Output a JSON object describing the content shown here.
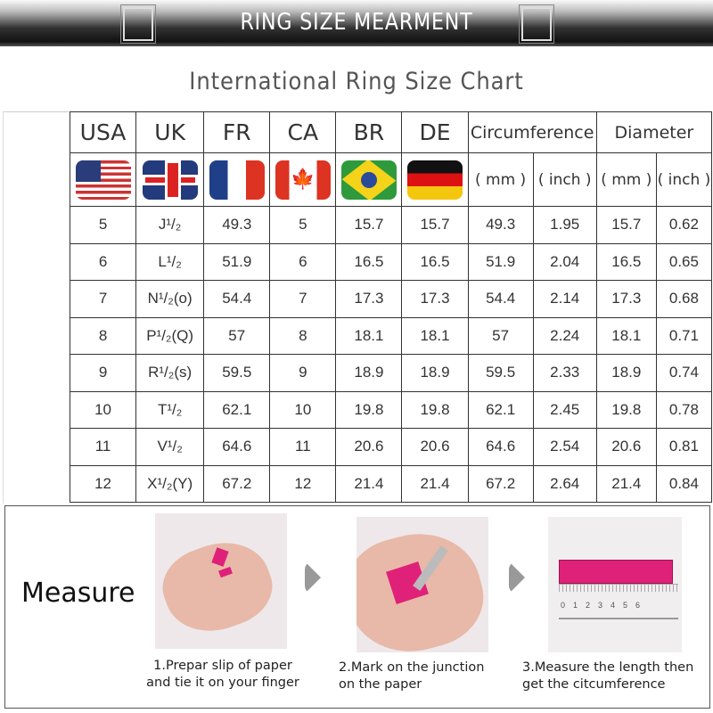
{
  "banner": {
    "title": "RING SIZE MEARMENT"
  },
  "title": "International Ring Size Chart",
  "table": {
    "headers": [
      "USA",
      "UK",
      "FR",
      "CA",
      "BR",
      "DE",
      "Circumference",
      "Diameter"
    ],
    "flags": [
      "us-flag-icon",
      "uk-flag-icon",
      "france-flag-icon",
      "canada-flag-icon",
      "brazil-flag-icon",
      "germany-flag-icon"
    ],
    "units": [
      "( mm )",
      "( inch )",
      "( mm )",
      "( inch )"
    ],
    "rows": [
      [
        "5",
        "J¹/₂",
        "49.3",
        "5",
        "15.7",
        "15.7",
        "49.3",
        "1.95",
        "15.7",
        "0.62"
      ],
      [
        "6",
        "L¹/₂",
        "51.9",
        "6",
        "16.5",
        "16.5",
        "51.9",
        "2.04",
        "16.5",
        "0.65"
      ],
      [
        "7",
        "N¹/₂(o)",
        "54.4",
        "7",
        "17.3",
        "17.3",
        "54.4",
        "2.14",
        "17.3",
        "0.68"
      ],
      [
        "8",
        "P¹/₂(Q)",
        "57",
        "8",
        "18.1",
        "18.1",
        "57",
        "2.24",
        "18.1",
        "0.71"
      ],
      [
        "9",
        "R¹/₂(s)",
        "59.5",
        "9",
        "18.9",
        "18.9",
        "59.5",
        "2.33",
        "18.9",
        "0.74"
      ],
      [
        "10",
        "T¹/₂",
        "62.1",
        "10",
        "19.8",
        "19.8",
        "62.1",
        "2.45",
        "19.8",
        "0.78"
      ],
      [
        "11",
        "V¹/₂",
        "64.6",
        "11",
        "20.6",
        "20.6",
        "64.6",
        "2.54",
        "20.6",
        "0.81"
      ],
      [
        "12",
        "X¹/₂(Y)",
        "67.2",
        "12",
        "21.4",
        "21.4",
        "67.2",
        "2.64",
        "21.4",
        "0.84"
      ]
    ]
  },
  "measure": {
    "label": "Measure",
    "steps": [
      {
        "line1": "1.Prepar slip of paper",
        "line2": "and tie it on your finger"
      },
      {
        "line1": "2.Mark on the junction",
        "line2": "on the paper"
      },
      {
        "line1": "3.Measure the length then",
        "line2": "get the citcumference"
      }
    ],
    "ruler_ticks": "0123456",
    "accent": "#e0217a"
  }
}
